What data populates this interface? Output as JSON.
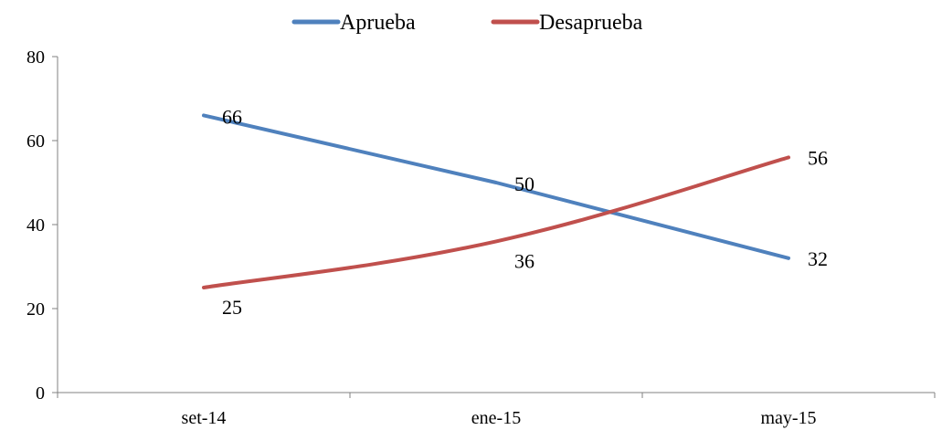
{
  "chart_data": {
    "type": "line",
    "categories": [
      "set-14",
      "ene-15",
      "may-15"
    ],
    "series": [
      {
        "name": "Aprueba",
        "values": [
          66,
          50,
          32
        ],
        "color": "#4F81BD",
        "smooth": false
      },
      {
        "name": "Desaprueba",
        "values": [
          25,
          36,
          56
        ],
        "color": "#C0504D",
        "smooth": true
      }
    ],
    "ylim": [
      0,
      80
    ],
    "yticks": [
      0,
      20,
      40,
      60,
      80
    ],
    "grid": false,
    "legend_position": "top-center",
    "data_labels": true
  }
}
